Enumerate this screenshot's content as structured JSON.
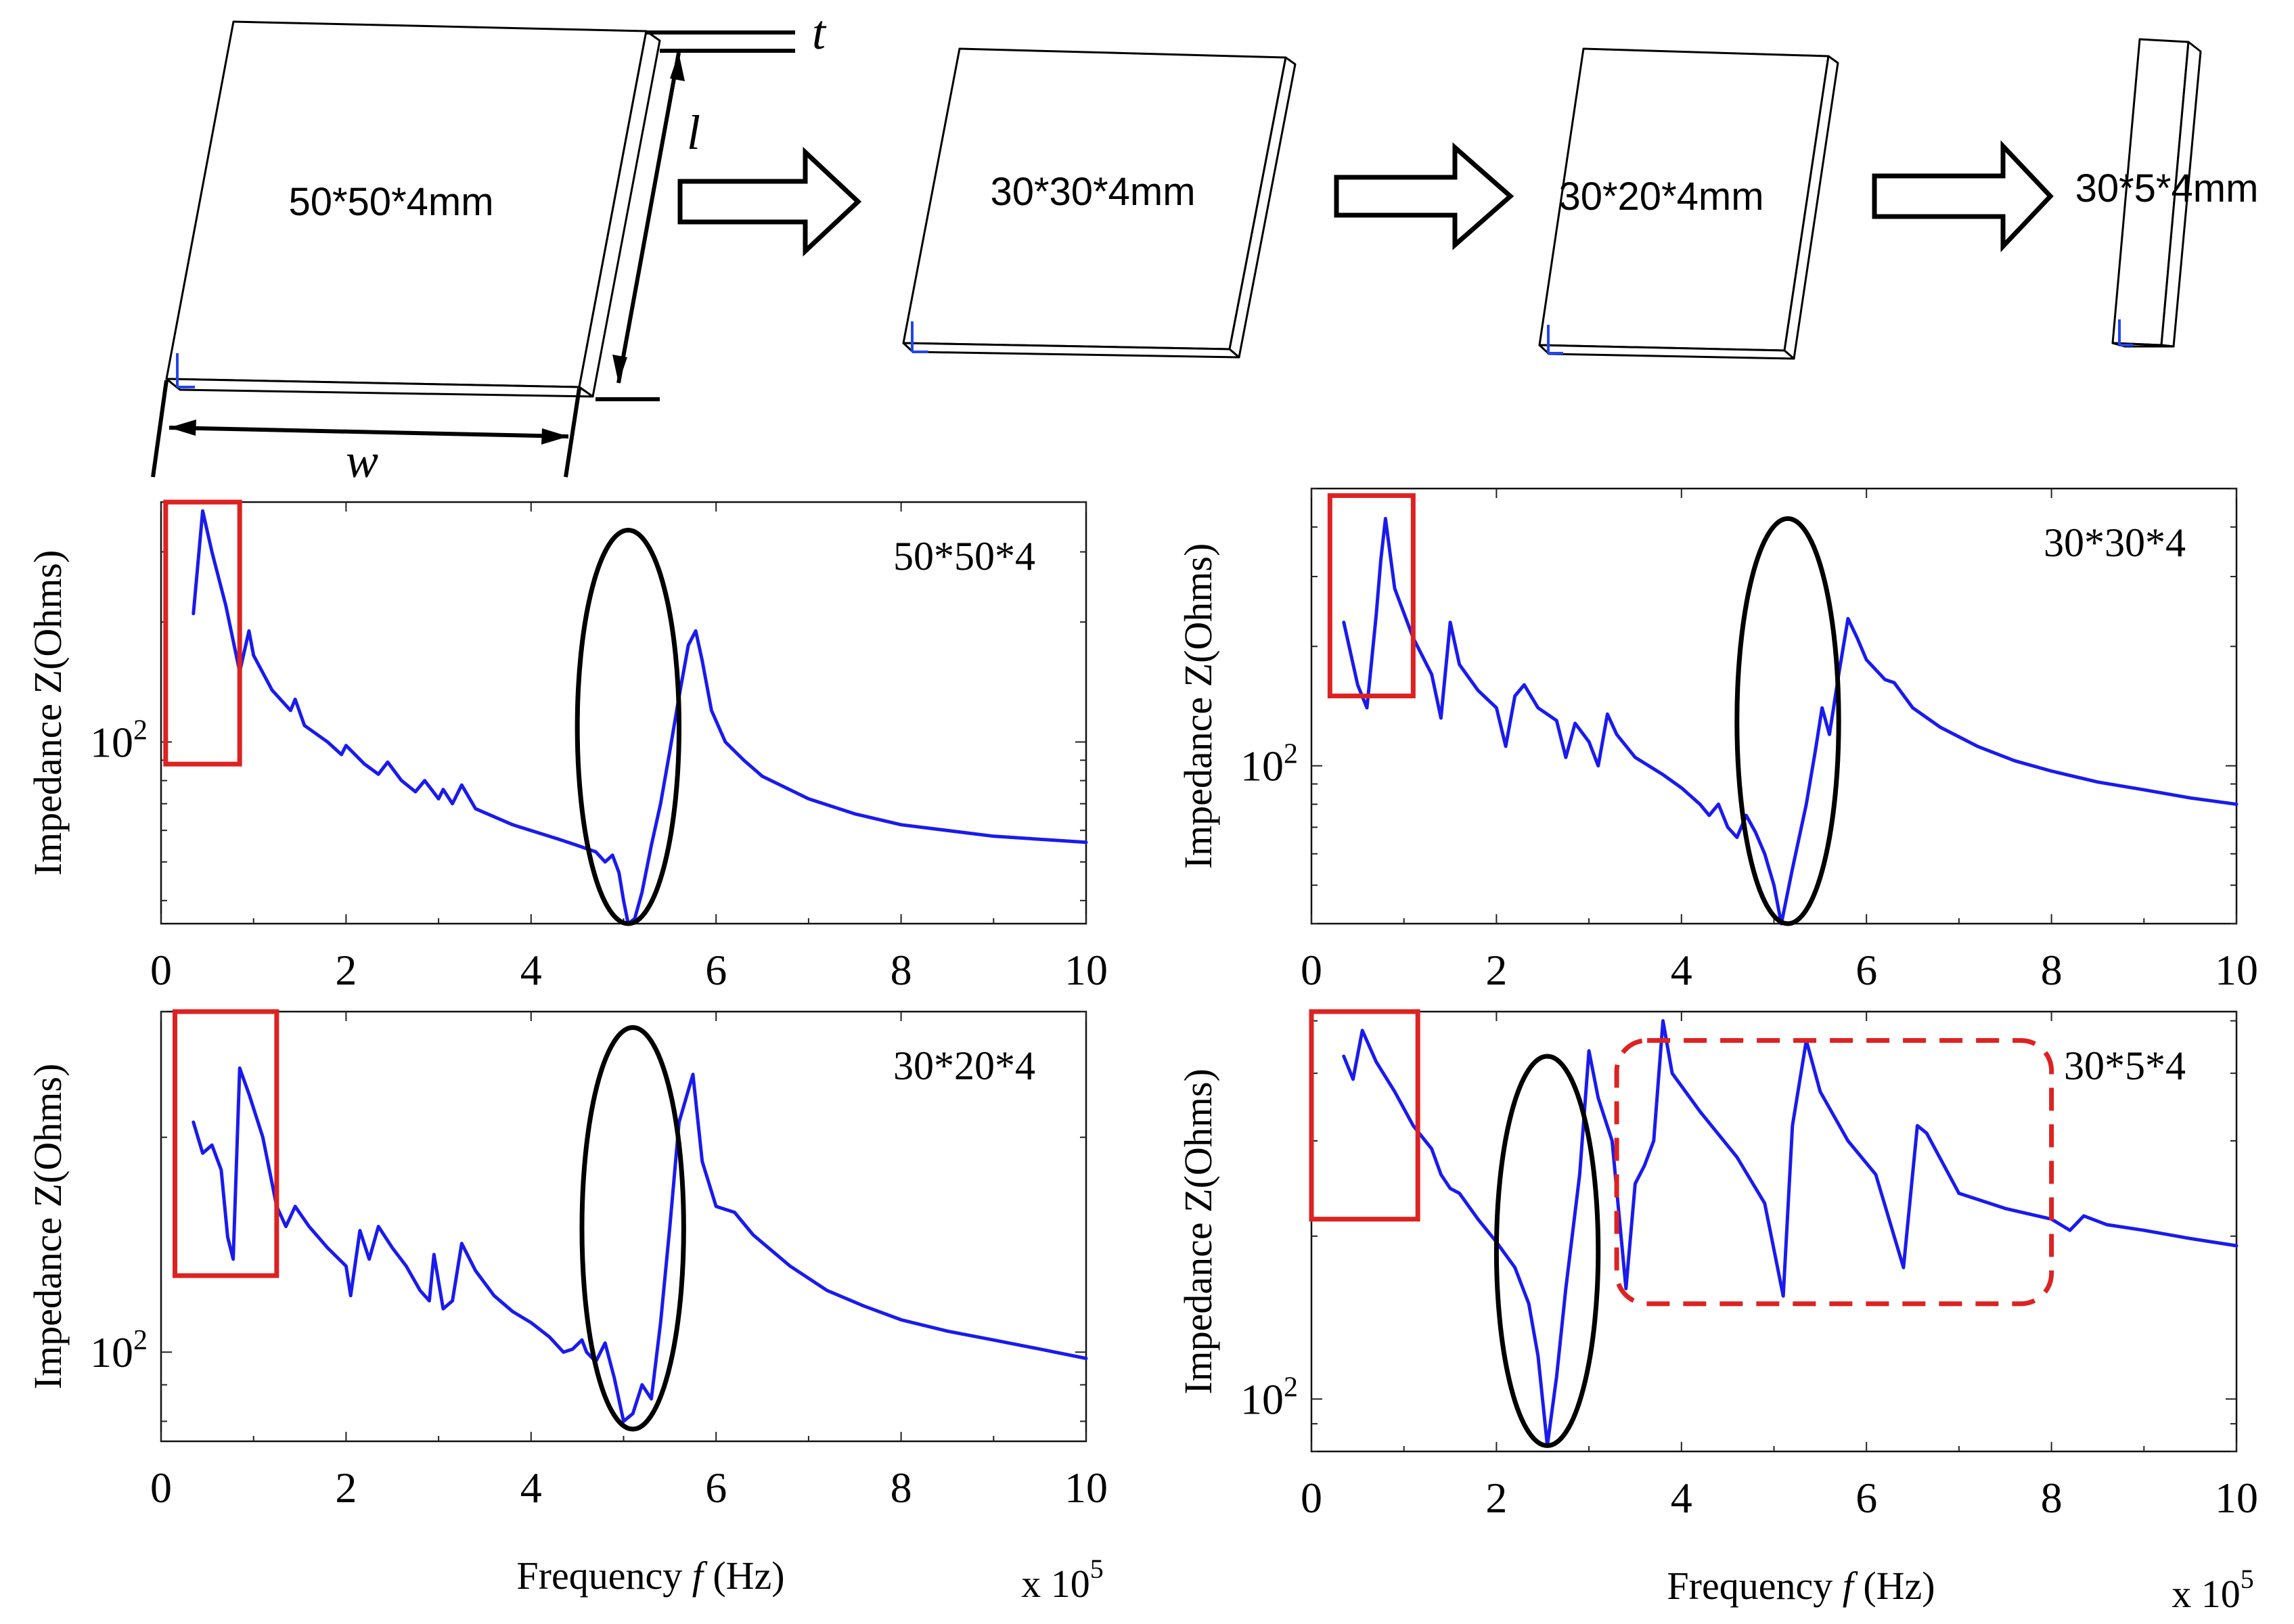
{
  "colors": {
    "curve": "#1a1aee",
    "red_box": "#dd2222",
    "ellipse": "#000000",
    "axes": "#111111"
  },
  "plates": [
    {
      "id": "p1",
      "label": "50*50*4mm"
    },
    {
      "id": "p2",
      "label": "30*30*4mm"
    },
    {
      "id": "p3",
      "label": "30*20*4mm"
    },
    {
      "id": "p4",
      "label": "30*5*4mm"
    }
  ],
  "dimensions": {
    "thickness": "t",
    "length": "l",
    "width": "w"
  },
  "chart_data": [
    {
      "type": "line",
      "title": "50*50*4",
      "xlabel": "",
      "ylabel": "Impedance Z(Ohms)",
      "xlim": [
        0,
        10
      ],
      "yscale": "log",
      "ylim": [
        35,
        400
      ],
      "x_ticks": [
        "0",
        "2",
        "4",
        "6",
        "8",
        "10"
      ],
      "y_tick_label": {
        "base": "10",
        "exp": "2",
        "value": 100
      },
      "series": [
        {
          "name": "50*50*4",
          "points": [
            [
              0.35,
              210
            ],
            [
              0.45,
              380
            ],
            [
              0.55,
              300
            ],
            [
              0.7,
              220
            ],
            [
              0.85,
              150
            ],
            [
              0.95,
              190
            ],
            [
              1.0,
              165
            ],
            [
              1.2,
              135
            ],
            [
              1.4,
              120
            ],
            [
              1.45,
              128
            ],
            [
              1.55,
              110
            ],
            [
              1.8,
              100
            ],
            [
              1.95,
              93
            ],
            [
              2.0,
              98
            ],
            [
              2.2,
              88
            ],
            [
              2.35,
              83
            ],
            [
              2.45,
              89
            ],
            [
              2.6,
              80
            ],
            [
              2.75,
              75
            ],
            [
              2.85,
              80
            ],
            [
              3.0,
              72
            ],
            [
              3.05,
              76
            ],
            [
              3.15,
              70
            ],
            [
              3.25,
              78
            ],
            [
              3.4,
              68
            ],
            [
              3.8,
              62
            ],
            [
              4.3,
              57
            ],
            [
              4.5,
              55
            ],
            [
              4.7,
              53
            ],
            [
              4.8,
              50
            ],
            [
              4.88,
              52
            ],
            [
              4.95,
              47
            ],
            [
              5.0,
              40
            ],
            [
              5.05,
              35
            ],
            [
              5.12,
              36
            ],
            [
              5.2,
              42
            ],
            [
              5.3,
              55
            ],
            [
              5.4,
              70
            ],
            [
              5.5,
              95
            ],
            [
              5.6,
              130
            ],
            [
              5.7,
              175
            ],
            [
              5.78,
              190
            ],
            [
              5.85,
              160
            ],
            [
              5.95,
              120
            ],
            [
              6.1,
              100
            ],
            [
              6.3,
              90
            ],
            [
              6.5,
              82
            ],
            [
              7.0,
              72
            ],
            [
              7.5,
              66
            ],
            [
              8.0,
              62
            ],
            [
              9.0,
              58
            ],
            [
              10.0,
              56
            ]
          ]
        }
      ],
      "annotations": {
        "red_box_x": [
          0.05,
          0.85
        ],
        "red_box_y": [
          88,
          400
        ],
        "ellipse_center": [
          5.05,
          110
        ],
        "ellipse_x_radius": 0.55,
        "ellipse_y_range": [
          35,
          340
        ]
      }
    },
    {
      "type": "line",
      "title": "30*30*4",
      "xlabel": "",
      "ylabel": "Impedance Z(Ohms)",
      "xlim": [
        0,
        10
      ],
      "yscale": "log",
      "ylim": [
        40,
        500
      ],
      "x_ticks": [
        "0",
        "2",
        "4",
        "6",
        "8",
        "10"
      ],
      "y_tick_label": {
        "base": "10",
        "exp": "2",
        "value": 100
      },
      "series": [
        {
          "name": "30*30*4",
          "points": [
            [
              0.35,
              230
            ],
            [
              0.5,
              160
            ],
            [
              0.6,
              140
            ],
            [
              0.7,
              240
            ],
            [
              0.75,
              330
            ],
            [
              0.8,
              420
            ],
            [
              0.9,
              280
            ],
            [
              1.1,
              210
            ],
            [
              1.3,
              170
            ],
            [
              1.4,
              132
            ],
            [
              1.5,
              230
            ],
            [
              1.6,
              180
            ],
            [
              1.8,
              155
            ],
            [
              2.0,
              140
            ],
            [
              2.1,
              112
            ],
            [
              2.2,
              150
            ],
            [
              2.3,
              160
            ],
            [
              2.45,
              140
            ],
            [
              2.65,
              130
            ],
            [
              2.75,
              105
            ],
            [
              2.85,
              128
            ],
            [
              3.0,
              115
            ],
            [
              3.1,
              100
            ],
            [
              3.2,
              135
            ],
            [
              3.3,
              120
            ],
            [
              3.5,
              105
            ],
            [
              3.8,
              95
            ],
            [
              4.0,
              88
            ],
            [
              4.2,
              80
            ],
            [
              4.3,
              75
            ],
            [
              4.4,
              80
            ],
            [
              4.5,
              70
            ],
            [
              4.6,
              66
            ],
            [
              4.7,
              75
            ],
            [
              4.8,
              68
            ],
            [
              4.9,
              60
            ],
            [
              5.0,
              50
            ],
            [
              5.08,
              40
            ],
            [
              5.2,
              55
            ],
            [
              5.35,
              80
            ],
            [
              5.45,
              110
            ],
            [
              5.52,
              140
            ],
            [
              5.6,
              120
            ],
            [
              5.7,
              170
            ],
            [
              5.8,
              235
            ],
            [
              5.9,
              210
            ],
            [
              6.0,
              185
            ],
            [
              6.2,
              165
            ],
            [
              6.3,
              162
            ],
            [
              6.5,
              140
            ],
            [
              6.8,
              125
            ],
            [
              7.2,
              112
            ],
            [
              7.6,
              103
            ],
            [
              8.0,
              97
            ],
            [
              8.5,
              91
            ],
            [
              9.0,
              87
            ],
            [
              9.5,
              83
            ],
            [
              10.0,
              80
            ]
          ]
        }
      ],
      "annotations": {
        "red_box_x": [
          0.2,
          1.1
        ],
        "red_box_y": [
          150,
          480
        ],
        "ellipse_center": [
          5.15,
          170
        ],
        "ellipse_x_radius": 0.55,
        "ellipse_y_range": [
          40,
          420
        ]
      }
    },
    {
      "type": "line",
      "title": "30*20*4",
      "xlabel": "Frequency f (Hz)",
      "x_multiplier": {
        "prefix": "x 10",
        "exp": "5"
      },
      "ylabel": "Impedance Z(Ohms)",
      "xlim": [
        0,
        10
      ],
      "yscale": "log",
      "ylim": [
        75,
        300
      ],
      "x_ticks": [
        "0",
        "2",
        "4",
        "6",
        "8",
        "10"
      ],
      "y_tick_label": {
        "base": "10",
        "exp": "2",
        "value": 100
      },
      "series": [
        {
          "name": "30*20*4",
          "points": [
            [
              0.35,
              210
            ],
            [
              0.45,
              190
            ],
            [
              0.55,
              195
            ],
            [
              0.65,
              180
            ],
            [
              0.72,
              145
            ],
            [
              0.78,
              135
            ],
            [
              0.85,
              250
            ],
            [
              0.95,
              230
            ],
            [
              1.1,
              200
            ],
            [
              1.25,
              160
            ],
            [
              1.35,
              150
            ],
            [
              1.45,
              160
            ],
            [
              1.6,
              150
            ],
            [
              1.8,
              140
            ],
            [
              2.0,
              132
            ],
            [
              2.05,
              120
            ],
            [
              2.15,
              148
            ],
            [
              2.25,
              135
            ],
            [
              2.35,
              150
            ],
            [
              2.5,
              140
            ],
            [
              2.65,
              132
            ],
            [
              2.8,
              122
            ],
            [
              2.9,
              118
            ],
            [
              2.95,
              137
            ],
            [
              3.05,
              115
            ],
            [
              3.15,
              118
            ],
            [
              3.25,
              142
            ],
            [
              3.4,
              130
            ],
            [
              3.6,
              120
            ],
            [
              3.8,
              114
            ],
            [
              4.0,
              110
            ],
            [
              4.2,
              105
            ],
            [
              4.35,
              100
            ],
            [
              4.45,
              101
            ],
            [
              4.55,
              104
            ],
            [
              4.6,
              100
            ],
            [
              4.7,
              97
            ],
            [
              4.8,
              103
            ],
            [
              4.9,
              92
            ],
            [
              5.0,
              80
            ],
            [
              5.1,
              82
            ],
            [
              5.2,
              90
            ],
            [
              5.3,
              86
            ],
            [
              5.4,
              110
            ],
            [
              5.5,
              150
            ],
            [
              5.6,
              210
            ],
            [
              5.75,
              245
            ],
            [
              5.85,
              185
            ],
            [
              6.0,
              160
            ],
            [
              6.2,
              157
            ],
            [
              6.4,
              146
            ],
            [
              6.8,
              132
            ],
            [
              7.2,
              122
            ],
            [
              7.6,
              116
            ],
            [
              8.0,
              111
            ],
            [
              8.5,
              107
            ],
            [
              9.0,
              104
            ],
            [
              9.5,
              101
            ],
            [
              10.0,
              98
            ]
          ]
        }
      ],
      "annotations": {
        "red_box_x": [
          0.15,
          1.25
        ],
        "red_box_y": [
          128,
          300
        ],
        "ellipse_center": [
          5.1,
          155
        ],
        "ellipse_x_radius": 0.55,
        "ellipse_y_range": [
          78,
          285
        ]
      }
    },
    {
      "type": "line",
      "title": "30*5*4",
      "xlabel": "Frequency f (Hz)",
      "x_multiplier": {
        "prefix": "x 10",
        "exp": "5"
      },
      "ylabel": "Impedance Z(Ohms)",
      "xlim": [
        0,
        10
      ],
      "yscale": "log",
      "ylim": [
        80,
        520
      ],
      "x_ticks": [
        "0",
        "2",
        "4",
        "6",
        "8",
        "10"
      ],
      "y_tick_label": {
        "base": "10",
        "exp": "2",
        "value": 100
      },
      "series": [
        {
          "name": "30*5*4",
          "points": [
            [
              0.35,
              430
            ],
            [
              0.45,
              390
            ],
            [
              0.55,
              480
            ],
            [
              0.7,
              420
            ],
            [
              0.9,
              370
            ],
            [
              1.1,
              320
            ],
            [
              1.3,
              290
            ],
            [
              1.4,
              260
            ],
            [
              1.5,
              245
            ],
            [
              1.6,
              240
            ],
            [
              1.8,
              215
            ],
            [
              2.0,
              195
            ],
            [
              2.2,
              175
            ],
            [
              2.35,
              150
            ],
            [
              2.45,
              120
            ],
            [
              2.55,
              82
            ],
            [
              2.65,
              110
            ],
            [
              2.75,
              160
            ],
            [
              2.9,
              260
            ],
            [
              3.0,
              440
            ],
            [
              3.1,
              360
            ],
            [
              3.25,
              300
            ],
            [
              3.4,
              160
            ],
            [
              3.5,
              250
            ],
            [
              3.6,
              270
            ],
            [
              3.7,
              300
            ],
            [
              3.8,
              500
            ],
            [
              3.9,
              400
            ],
            [
              4.2,
              340
            ],
            [
              4.6,
              280
            ],
            [
              4.9,
              230
            ],
            [
              5.1,
              155
            ],
            [
              5.2,
              320
            ],
            [
              5.35,
              460
            ],
            [
              5.5,
              370
            ],
            [
              5.8,
              300
            ],
            [
              6.1,
              260
            ],
            [
              6.4,
              175
            ],
            [
              6.55,
              320
            ],
            [
              6.65,
              310
            ],
            [
              7.0,
              240
            ],
            [
              7.5,
              225
            ],
            [
              8.0,
              215
            ],
            [
              8.2,
              205
            ],
            [
              8.35,
              218
            ],
            [
              8.6,
              210
            ],
            [
              9.0,
              205
            ],
            [
              9.5,
              198
            ],
            [
              10.0,
              192
            ]
          ]
        }
      ],
      "annotations": {
        "red_box_x": [
          0.0,
          1.15
        ],
        "red_box_y": [
          215,
          520
        ],
        "ellipse_center": [
          2.55,
          180
        ],
        "ellipse_x_radius": 0.55,
        "ellipse_y_range": [
          82,
          430
        ],
        "dashed_box_x": [
          3.3,
          8.0
        ],
        "dashed_box_y": [
          150,
          460
        ]
      }
    }
  ]
}
